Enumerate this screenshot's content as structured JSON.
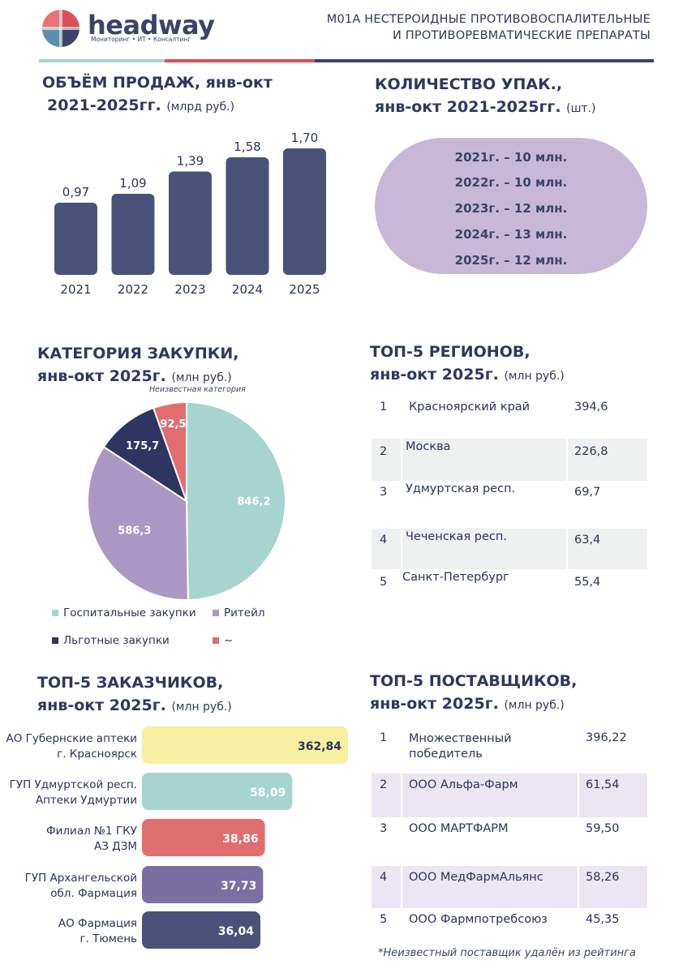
{
  "header": {
    "logo_text": "headway",
    "logo_subtitle": "Мониторинг • ИТ • Консалтинг",
    "title_line1": "M01A НЕСТЕРОИДНЫЕ ПРОТИВОВОСПАЛИТЕЛЬНЫЕ",
    "title_line2": "И ПРОТИВОРЕВМАТИЧЕСКИЕ ПРЕПАРАТЫ"
  },
  "sales": {
    "title_line1": "ОБЪЁМ ПРОДАЖ, янв-окт",
    "title_line2": "2021-2025гг.",
    "unit": "(млрд руб.)"
  },
  "packages": {
    "title_line1": "КОЛИЧЕСТВО УПАК.,",
    "title_line2": "янв-окт 2021-2025гг.",
    "unit": "(шт.)",
    "lines": [
      "2021г. – 10 млн.",
      "2022г. – 10 млн.",
      "2023г. – 12 млн.",
      "2024г. – 13 млн.",
      "2025г. – 12 млн."
    ]
  },
  "category": {
    "title_line1": "КАТЕГОРИЯ ЗАКУПКИ,",
    "title_line2": "янв-окт 2025г.",
    "unit": "(млн руб.)",
    "callout": "Неизвестная категория",
    "legend": [
      "Госпитальные закупки",
      "Ритейл",
      "Льготные закупки",
      "~"
    ]
  },
  "regions": {
    "title_line1": "ТОП-5 РЕГИОНОВ,",
    "title_line2": "янв-окт 2025г.",
    "unit": "(млн руб.)",
    "rows": [
      {
        "num": "1",
        "name": "Красноярский край",
        "value": "394,6"
      },
      {
        "num": "2",
        "name": "Москва",
        "value": "226,8"
      },
      {
        "num": "3",
        "name": "Удмуртская респ.",
        "value": "69,7"
      },
      {
        "num": "4",
        "name": "Чеченская респ.",
        "value": "63,4"
      },
      {
        "num": "5",
        "name": "Санкт-Петербург",
        "value": "55,4"
      }
    ]
  },
  "customers": {
    "title_line1": "ТОП-5 ЗАКАЗЧИКОВ,",
    "title_line2": "янв-окт 2025г.",
    "unit": "(млн руб.)"
  },
  "suppliers": {
    "title_line1": "ТОП-5 ПОСТАВЩИКОВ,",
    "title_line2": "янв-окт 2025г.",
    "unit": "(млн руб.)",
    "rows": [
      {
        "num": "1",
        "name_line1": "Множественный",
        "name_line2": "победитель",
        "value": "396,22"
      },
      {
        "num": "2",
        "name_line1": "ООО Альфа-Фарм",
        "name_line2": "",
        "value": "61,54"
      },
      {
        "num": "3",
        "name_line1": "ООО МАРТФАРМ",
        "name_line2": "",
        "value": "59,50"
      },
      {
        "num": "4",
        "name_line1": "ООО МедФармАльянс",
        "name_line2": "",
        "value": "58,26"
      },
      {
        "num": "5",
        "name_line1": "ООО Фармпотребсоюз",
        "name_line2": "",
        "value": "45,35"
      }
    ],
    "footnote": "*Неизвестный поставщик удалён из рейтинга"
  },
  "colors": {
    "navy": "#4a5279",
    "lilac": "#c7b8d8",
    "teal": "#a8d4cf",
    "purple": "#ab97c4",
    "darknavy": "#2e3560",
    "red": "#e06e6e",
    "yellow": "#f6f0a0",
    "violet": "#7a6ea3"
  },
  "chart_data": [
    {
      "type": "bar",
      "title": "ОБЪЁМ ПРОДАЖ, янв-окт 2021-2025гг. (млрд руб.)",
      "categories": [
        "2021",
        "2022",
        "2023",
        "2024",
        "2025"
      ],
      "values": [
        0.97,
        1.09,
        1.39,
        1.58,
        1.7
      ],
      "labels": [
        "0,97",
        "1,09",
        "1,39",
        "1,58",
        "1,70"
      ],
      "ylim": [
        0,
        1.8
      ]
    },
    {
      "type": "pie",
      "title": "КАТЕГОРИЯ ЗАКУПКИ, янв-окт 2025г. (млн руб.)",
      "slices": [
        {
          "name": "Госпитальные закупки",
          "value": 846.2,
          "label": "846,2",
          "color": "#a8d4cf"
        },
        {
          "name": "Ритейл",
          "value": 586.3,
          "label": "586,3",
          "color": "#ab97c4"
        },
        {
          "name": "Льготные закупки",
          "value": 175.7,
          "label": "175,7",
          "color": "#2e3560"
        },
        {
          "name": "~",
          "value": 92.5,
          "label": "92,5",
          "color": "#e06e6e"
        }
      ]
    },
    {
      "type": "bar",
      "orientation": "horizontal",
      "title": "ТОП-5 ЗАКАЗЧИКОВ, янв-окт 2025г. (млн руб.)",
      "items": [
        {
          "line1": "АО Губернские аптеки",
          "line2": "г. Красноярск",
          "value": 362.84,
          "label": "362,84",
          "color": "#f6f0a0",
          "text_color": "#2b3358"
        },
        {
          "line1": "ГУП Удмуртской респ.",
          "line2": "Аптеки Удмуртии",
          "value": 58.09,
          "label": "58,09",
          "color": "#a8d4cf",
          "text_color": "#ffffff"
        },
        {
          "line1": "Филиал №1 ГКУ",
          "line2": "АЗ ДЗМ",
          "value": 38.86,
          "label": "38,86",
          "color": "#e06e6e",
          "text_color": "#ffffff"
        },
        {
          "line1": "ГУП Архангельской",
          "line2": "обл. Фармация",
          "value": 37.73,
          "label": "37,73",
          "color": "#7a6ea3",
          "text_color": "#ffffff"
        },
        {
          "line1": "АО Фармация",
          "line2": "г. Тюмень",
          "value": 36.04,
          "label": "36,04",
          "color": "#4a5279",
          "text_color": "#ffffff"
        }
      ]
    }
  ]
}
